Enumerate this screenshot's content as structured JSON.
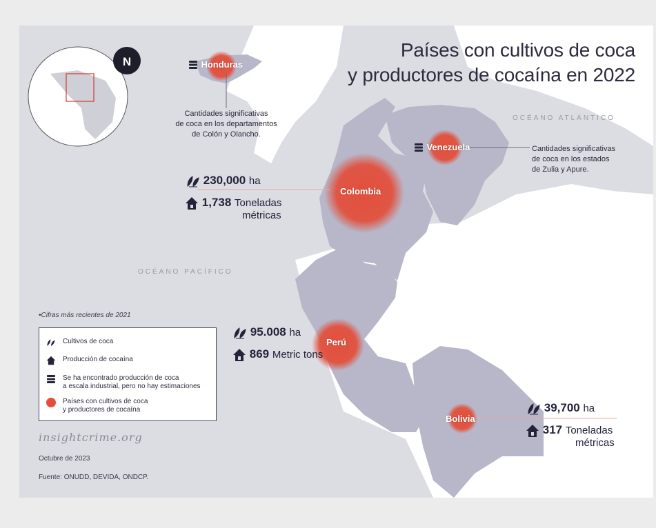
{
  "title_line1": "Países con cultivos de coca",
  "title_line2": "y productores de cocaína en 2022",
  "north_label": "N",
  "oceans": {
    "atlantic": "OCÉANO ATLÁNTICO",
    "pacific": "OCÉANO PACÍFICO"
  },
  "countries": {
    "honduras": {
      "name": "Honduras",
      "note_lines": [
        "Cantidades significativas",
        "de coca en los departamentos",
        "de Colón y Olancho."
      ]
    },
    "venezuela": {
      "name": "Venezuela",
      "note_lines": [
        "Cantidades significativas",
        "de coca en los estados",
        "de Zulia y Apure."
      ]
    },
    "colombia": {
      "name": "Colombia",
      "coca_value": "230,000",
      "coca_unit": "ha",
      "cocaine_value": "1,738",
      "cocaine_unit_line1": "Toneladas",
      "cocaine_unit_line2": "métricas"
    },
    "peru": {
      "name": "Perú",
      "coca_value": "95.008",
      "coca_unit": "ha",
      "cocaine_value": "869",
      "cocaine_unit_line1": "Metric tons"
    },
    "bolivia": {
      "name": "Bolivia",
      "coca_value": "39,700",
      "coca_unit": "ha",
      "cocaine_value": "317",
      "cocaine_unit_line1": "Toneladas",
      "cocaine_unit_line2": "métricas"
    }
  },
  "footnote": "•Cifras más recientes de 2021",
  "legend": {
    "coca": "Cultivos de coca",
    "cocaine": "Producción de cocaína",
    "industrial_line1": "Se ha encontrado producción de coca",
    "industrial_line2": "a escala industrial, pero no hay estimaciones",
    "countries_line1": "Países con cultivos de coca",
    "countries_line2": "y productores de cocaína"
  },
  "brand": "insightcrime.org",
  "date": "Octubre de 2023",
  "source": "Fuente: ONUDD, DEVIDA, ONDCP.",
  "colors": {
    "land_highlight": "#b7b7c9",
    "land_other": "#ffffff",
    "ocean": "#dcdce3",
    "bubble": "#e2503d",
    "ink": "#23233a"
  }
}
